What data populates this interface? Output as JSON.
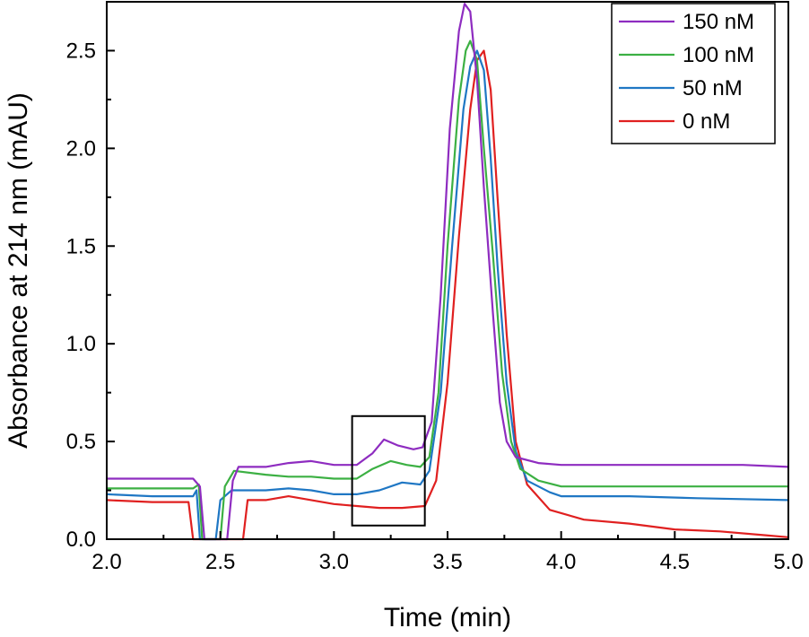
{
  "chart_data": {
    "type": "line",
    "title": "",
    "xlabel": "Time (min)",
    "ylabel": "Absorbance at 214 nm (mAU)",
    "xlim": [
      2.0,
      5.0
    ],
    "ylim": [
      0.0,
      2.75
    ],
    "xticks": [
      "2.0",
      "2.5",
      "3.0",
      "3.5",
      "4.0",
      "4.5",
      "5.0"
    ],
    "yticks": [
      "0.0",
      "0.5",
      "1.0",
      "1.5",
      "2.0",
      "2.5"
    ],
    "grid": false,
    "legend_position": "top-right",
    "highlight_box": {
      "x": [
        3.08,
        3.4
      ],
      "y": [
        0.07,
        0.63
      ]
    },
    "series": [
      {
        "name": "150 nM",
        "color": "#8E2CC0",
        "points": [
          [
            2.0,
            0.31
          ],
          [
            2.2,
            0.31
          ],
          [
            2.38,
            0.31
          ],
          [
            2.41,
            0.27
          ],
          [
            2.43,
            0.0
          ],
          [
            2.53,
            0.0
          ],
          [
            2.555,
            0.3
          ],
          [
            2.58,
            0.37
          ],
          [
            2.7,
            0.37
          ],
          [
            2.8,
            0.39
          ],
          [
            2.9,
            0.4
          ],
          [
            3.0,
            0.38
          ],
          [
            3.1,
            0.38
          ],
          [
            3.17,
            0.44
          ],
          [
            3.22,
            0.51
          ],
          [
            3.28,
            0.48
          ],
          [
            3.35,
            0.46
          ],
          [
            3.39,
            0.47
          ],
          [
            3.43,
            0.6
          ],
          [
            3.47,
            1.25
          ],
          [
            3.51,
            2.1
          ],
          [
            3.55,
            2.6
          ],
          [
            3.575,
            2.74
          ],
          [
            3.6,
            2.7
          ],
          [
            3.63,
            2.35
          ],
          [
            3.66,
            1.8
          ],
          [
            3.7,
            1.15
          ],
          [
            3.73,
            0.7
          ],
          [
            3.76,
            0.5
          ],
          [
            3.8,
            0.42
          ],
          [
            3.9,
            0.39
          ],
          [
            4.0,
            0.38
          ],
          [
            4.2,
            0.38
          ],
          [
            4.5,
            0.38
          ],
          [
            4.8,
            0.38
          ],
          [
            5.0,
            0.37
          ]
        ]
      },
      {
        "name": "100 nM",
        "color": "#3CB043",
        "points": [
          [
            2.0,
            0.26
          ],
          [
            2.2,
            0.26
          ],
          [
            2.38,
            0.26
          ],
          [
            2.405,
            0.28
          ],
          [
            2.42,
            0.0
          ],
          [
            2.5,
            0.0
          ],
          [
            2.52,
            0.27
          ],
          [
            2.56,
            0.35
          ],
          [
            2.7,
            0.33
          ],
          [
            2.8,
            0.32
          ],
          [
            2.9,
            0.32
          ],
          [
            3.0,
            0.31
          ],
          [
            3.1,
            0.31
          ],
          [
            3.17,
            0.36
          ],
          [
            3.25,
            0.4
          ],
          [
            3.32,
            0.38
          ],
          [
            3.38,
            0.37
          ],
          [
            3.42,
            0.42
          ],
          [
            3.46,
            0.75
          ],
          [
            3.5,
            1.5
          ],
          [
            3.55,
            2.25
          ],
          [
            3.58,
            2.5
          ],
          [
            3.6,
            2.55
          ],
          [
            3.63,
            2.45
          ],
          [
            3.66,
            2.0
          ],
          [
            3.7,
            1.45
          ],
          [
            3.74,
            0.85
          ],
          [
            3.78,
            0.5
          ],
          [
            3.82,
            0.36
          ],
          [
            3.9,
            0.3
          ],
          [
            4.0,
            0.27
          ],
          [
            4.3,
            0.27
          ],
          [
            4.6,
            0.27
          ],
          [
            5.0,
            0.27
          ]
        ]
      },
      {
        "name": "50 nM",
        "color": "#1F77C4",
        "points": [
          [
            2.0,
            0.23
          ],
          [
            2.2,
            0.22
          ],
          [
            2.38,
            0.22
          ],
          [
            2.395,
            0.25
          ],
          [
            2.41,
            0.0
          ],
          [
            2.48,
            0.0
          ],
          [
            2.5,
            0.2
          ],
          [
            2.55,
            0.25
          ],
          [
            2.7,
            0.25
          ],
          [
            2.8,
            0.26
          ],
          [
            2.9,
            0.25
          ],
          [
            3.0,
            0.23
          ],
          [
            3.1,
            0.23
          ],
          [
            3.2,
            0.25
          ],
          [
            3.3,
            0.29
          ],
          [
            3.38,
            0.28
          ],
          [
            3.42,
            0.35
          ],
          [
            3.47,
            0.75
          ],
          [
            3.52,
            1.5
          ],
          [
            3.57,
            2.2
          ],
          [
            3.6,
            2.42
          ],
          [
            3.63,
            2.5
          ],
          [
            3.66,
            2.4
          ],
          [
            3.69,
            1.95
          ],
          [
            3.72,
            1.4
          ],
          [
            3.76,
            0.8
          ],
          [
            3.8,
            0.45
          ],
          [
            3.85,
            0.3
          ],
          [
            3.95,
            0.24
          ],
          [
            4.0,
            0.22
          ],
          [
            4.3,
            0.22
          ],
          [
            4.6,
            0.21
          ],
          [
            5.0,
            0.2
          ]
        ]
      },
      {
        "name": "0 nM",
        "color": "#E02020",
        "points": [
          [
            2.0,
            0.2
          ],
          [
            2.2,
            0.19
          ],
          [
            2.36,
            0.19
          ],
          [
            2.38,
            0.0
          ],
          [
            2.6,
            0.0
          ],
          [
            2.62,
            0.2
          ],
          [
            2.7,
            0.2
          ],
          [
            2.8,
            0.22
          ],
          [
            2.9,
            0.2
          ],
          [
            3.0,
            0.18
          ],
          [
            3.1,
            0.17
          ],
          [
            3.2,
            0.16
          ],
          [
            3.3,
            0.16
          ],
          [
            3.4,
            0.17
          ],
          [
            3.45,
            0.3
          ],
          [
            3.5,
            0.8
          ],
          [
            3.55,
            1.55
          ],
          [
            3.6,
            2.2
          ],
          [
            3.63,
            2.45
          ],
          [
            3.66,
            2.5
          ],
          [
            3.69,
            2.3
          ],
          [
            3.72,
            1.75
          ],
          [
            3.76,
            1.05
          ],
          [
            3.8,
            0.5
          ],
          [
            3.85,
            0.28
          ],
          [
            3.95,
            0.15
          ],
          [
            4.1,
            0.1
          ],
          [
            4.3,
            0.08
          ],
          [
            4.5,
            0.05
          ],
          [
            4.7,
            0.04
          ],
          [
            4.9,
            0.02
          ],
          [
            5.0,
            0.01
          ]
        ]
      }
    ]
  }
}
